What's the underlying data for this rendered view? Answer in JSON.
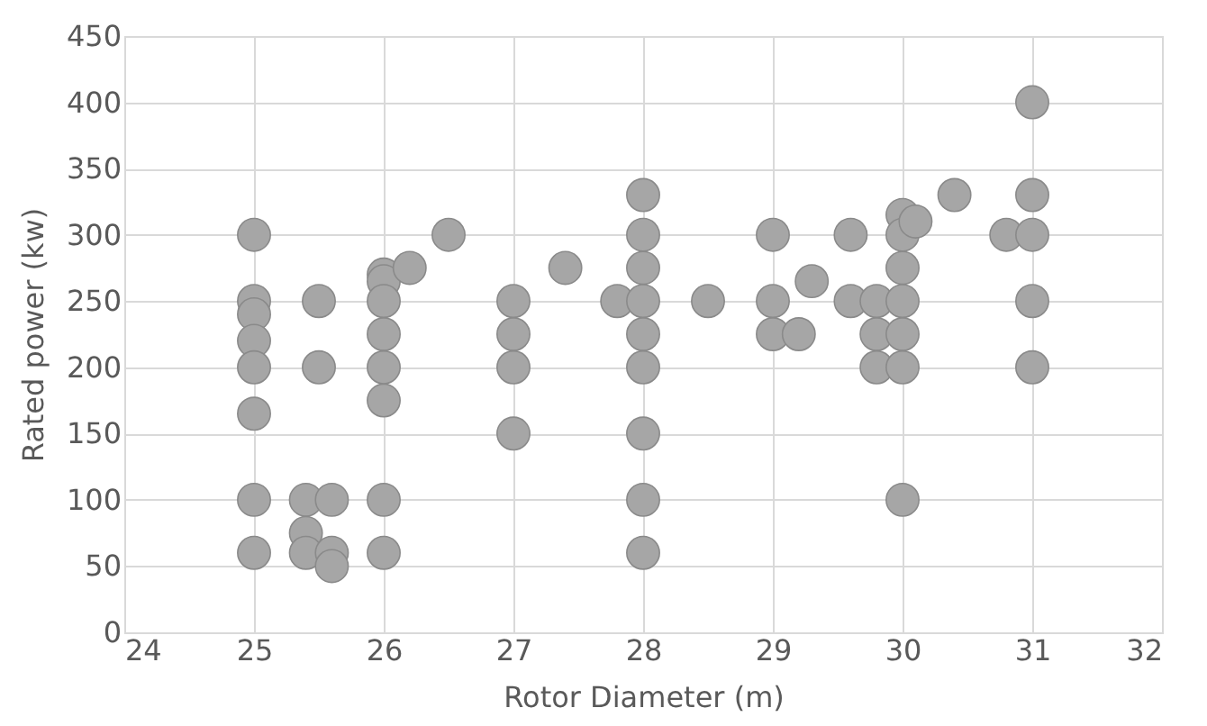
{
  "chart_data": {
    "type": "scatter",
    "xlabel": "Rotor Diameter (m)",
    "ylabel": "Rated power (kw)",
    "xlim": [
      24,
      32
    ],
    "xticks": [
      24,
      25,
      26,
      27,
      28,
      29,
      30,
      31,
      32
    ],
    "ylim": [
      0,
      450
    ],
    "yticks": [
      0,
      50,
      100,
      150,
      200,
      250,
      300,
      350,
      400,
      450
    ],
    "grid": true,
    "series": [
      {
        "color": "#a6a6a6",
        "x": [
          25,
          25,
          25,
          25,
          25,
          25,
          25,
          25,
          25.5,
          25.5,
          25.4,
          25.4,
          25.4,
          25.6,
          25.6,
          25.6,
          26,
          26,
          26,
          26,
          26,
          26,
          26,
          26,
          26.2,
          26.5,
          27,
          27,
          27,
          27,
          27.4,
          27.8,
          28,
          28,
          28,
          28,
          28,
          28,
          28,
          28,
          28,
          28.5,
          29,
          29,
          29,
          29.2,
          29.3,
          29.6,
          29.6,
          29.8,
          29.8,
          29.8,
          30,
          30,
          30,
          30,
          30,
          30,
          30,
          30.1,
          30.4,
          30.8,
          31,
          31,
          31,
          31,
          31
        ],
        "values": [
          300,
          250,
          240,
          220,
          200,
          165,
          100,
          60,
          250,
          200,
          100,
          75,
          60,
          100,
          60,
          50,
          270,
          265,
          250,
          225,
          200,
          175,
          100,
          60,
          275,
          300,
          250,
          225,
          200,
          150,
          275,
          250,
          330,
          300,
          275,
          250,
          225,
          200,
          150,
          100,
          60,
          250,
          300,
          250,
          225,
          225,
          265,
          300,
          250,
          250,
          225,
          200,
          315,
          300,
          275,
          250,
          225,
          200,
          100,
          310,
          330,
          300,
          400,
          330,
          300,
          250,
          200
        ]
      }
    ]
  }
}
